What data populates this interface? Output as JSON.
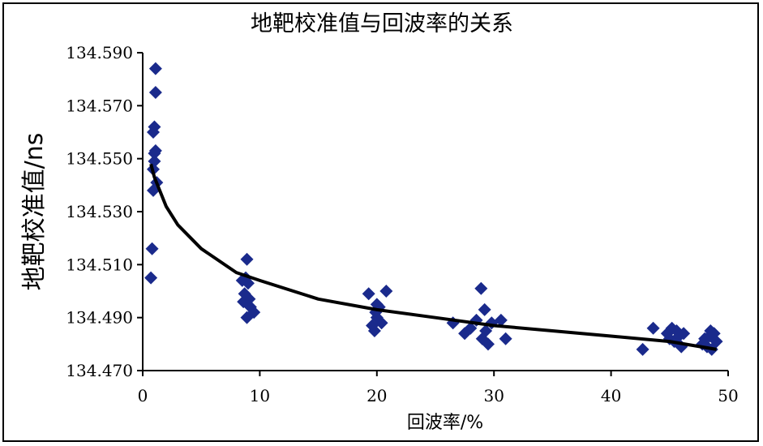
{
  "chart_data": {
    "type": "scatter",
    "title": "地靶校准值与回波率的关系",
    "xlabel": "回波率/%",
    "ylabel": "地靶校准值/ns",
    "xlim": [
      0,
      50
    ],
    "ylim": [
      134.47,
      134.59
    ],
    "xticks": [
      "0",
      "10",
      "20",
      "30",
      "40",
      "50"
    ],
    "yticks": [
      "134.470",
      "134.490",
      "134.510",
      "134.530",
      "134.550",
      "134.570",
      "134.590"
    ],
    "grid": false,
    "legend": "none",
    "marker_color": "#1a2a8c",
    "trend_color": "#000000",
    "series": [
      {
        "points": [
          [
            0.7,
            134.505
          ],
          [
            0.8,
            134.516
          ],
          [
            0.9,
            134.538
          ],
          [
            0.9,
            134.546
          ],
          [
            1.0,
            134.552
          ],
          [
            0.9,
            134.56
          ],
          [
            1.0,
            134.562
          ],
          [
            1.1,
            134.553
          ],
          [
            1.1,
            134.575
          ],
          [
            1.1,
            134.584
          ],
          [
            1.0,
            134.549
          ],
          [
            1.2,
            134.541
          ],
          [
            8.5,
            134.504
          ],
          [
            8.7,
            134.499
          ],
          [
            8.6,
            134.496
          ],
          [
            8.9,
            134.512
          ],
          [
            9.0,
            134.503
          ],
          [
            8.9,
            134.49
          ],
          [
            9.2,
            134.494
          ],
          [
            9.5,
            134.492
          ],
          [
            9.1,
            134.497
          ],
          [
            8.8,
            134.505
          ],
          [
            19.3,
            134.499
          ],
          [
            19.6,
            134.487
          ],
          [
            19.8,
            134.485
          ],
          [
            20.0,
            134.49
          ],
          [
            20.2,
            134.494
          ],
          [
            20.4,
            134.488
          ],
          [
            20.0,
            134.495
          ],
          [
            20.8,
            134.5
          ],
          [
            19.9,
            134.492
          ],
          [
            26.5,
            134.488
          ],
          [
            27.5,
            134.484
          ],
          [
            28.0,
            134.486
          ],
          [
            28.5,
            134.489
          ],
          [
            28.9,
            134.501
          ],
          [
            29.0,
            134.482
          ],
          [
            29.3,
            134.485
          ],
          [
            29.5,
            134.48
          ],
          [
            29.2,
            134.493
          ],
          [
            30.6,
            134.489
          ],
          [
            31.0,
            134.482
          ],
          [
            29.8,
            134.488
          ],
          [
            42.7,
            134.478
          ],
          [
            43.6,
            134.486
          ],
          [
            44.8,
            134.484
          ],
          [
            45.0,
            134.482
          ],
          [
            45.2,
            134.486
          ],
          [
            45.4,
            134.481
          ],
          [
            45.6,
            134.485
          ],
          [
            45.8,
            134.483
          ],
          [
            46.0,
            134.479
          ],
          [
            46.2,
            134.484
          ],
          [
            47.8,
            134.48
          ],
          [
            48.0,
            134.482
          ],
          [
            48.2,
            134.479
          ],
          [
            48.4,
            134.483
          ],
          [
            48.6,
            134.478
          ],
          [
            48.8,
            134.484
          ],
          [
            49.0,
            134.481
          ],
          [
            48.5,
            134.485
          ]
        ]
      }
    ],
    "trendline": {
      "type": "logarithmic",
      "x": [
        0.7,
        1,
        2,
        3,
        5,
        8,
        10,
        15,
        20,
        25,
        30,
        35,
        40,
        45,
        49
      ],
      "y": [
        134.548,
        134.543,
        134.532,
        134.525,
        134.516,
        134.507,
        134.504,
        134.497,
        134.493,
        134.49,
        134.487,
        134.485,
        134.483,
        134.481,
        134.478
      ]
    }
  }
}
